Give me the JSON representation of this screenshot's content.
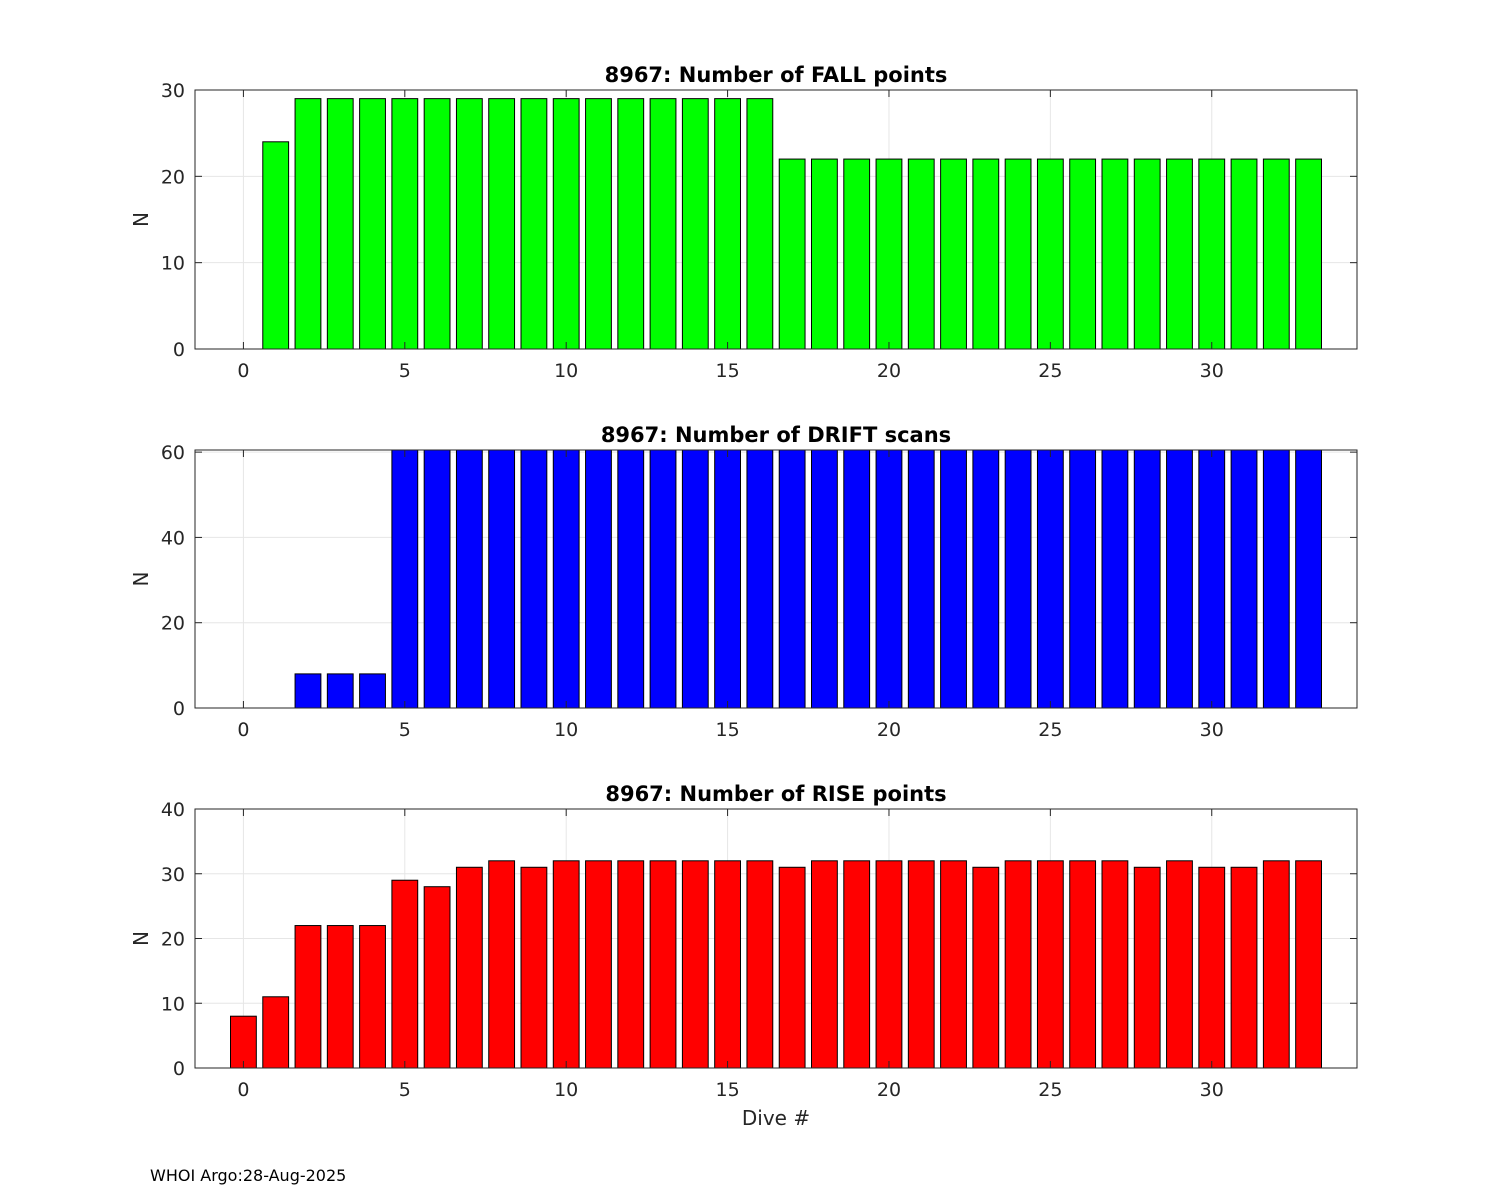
{
  "footer": "WHOI Argo:28-Aug-2025",
  "chart_data": [
    {
      "type": "bar",
      "title": "8967: Number of FALL points",
      "xlabel": "",
      "ylabel": "N",
      "xlim": [
        -1.5,
        34.5
      ],
      "ylim": [
        0,
        30
      ],
      "xticks": [
        0,
        5,
        10,
        15,
        20,
        25,
        30
      ],
      "yticks": [
        0,
        10,
        20,
        30
      ],
      "grid": true,
      "color": "#00ff00",
      "x": [
        1,
        2,
        3,
        4,
        5,
        6,
        7,
        8,
        9,
        10,
        11,
        12,
        13,
        14,
        15,
        16,
        17,
        18,
        19,
        20,
        21,
        22,
        23,
        24,
        25,
        26,
        27,
        28,
        29,
        30,
        31,
        32,
        33
      ],
      "values": [
        24,
        29,
        29,
        29,
        29,
        29,
        29,
        29,
        29,
        29,
        29,
        29,
        29,
        29,
        29,
        29,
        22,
        22,
        22,
        22,
        22,
        22,
        22,
        22,
        22,
        22,
        22,
        22,
        22,
        22,
        22,
        22,
        22
      ]
    },
    {
      "type": "bar",
      "title": "8967: Number of DRIFT scans",
      "xlabel": "",
      "ylabel": "N",
      "xlim": [
        -1.5,
        34.5
      ],
      "ylim": [
        0,
        60.5
      ],
      "xticks": [
        0,
        5,
        10,
        15,
        20,
        25,
        30
      ],
      "yticks": [
        0,
        20,
        40,
        60
      ],
      "grid": true,
      "color": "#0000ff",
      "x": [
        -1,
        0,
        1,
        2,
        3,
        4,
        5,
        6,
        7,
        8,
        9,
        10,
        11,
        12,
        13,
        14,
        15,
        16,
        17,
        18,
        19,
        20,
        21,
        22,
        23,
        24,
        25,
        26,
        27,
        28,
        29,
        30,
        31,
        32,
        33
      ],
      "values": [
        0,
        0,
        0,
        8,
        8,
        8,
        61,
        61,
        61,
        61,
        61,
        61,
        61,
        61,
        61,
        61,
        61,
        61,
        61,
        61,
        61,
        61,
        61,
        61,
        61,
        61,
        61,
        61,
        61,
        61,
        61,
        61,
        61,
        61,
        61
      ]
    },
    {
      "type": "bar",
      "title": "8967: Number of RISE points",
      "xlabel": "Dive #",
      "ylabel": "N",
      "xlim": [
        -1.5,
        34.5
      ],
      "ylim": [
        0,
        40
      ],
      "xticks": [
        0,
        5,
        10,
        15,
        20,
        25,
        30
      ],
      "yticks": [
        0,
        10,
        20,
        30,
        40
      ],
      "grid": true,
      "color": "#ff0000",
      "x": [
        0,
        1,
        2,
        3,
        4,
        5,
        6,
        7,
        8,
        9,
        10,
        11,
        12,
        13,
        14,
        15,
        16,
        17,
        18,
        19,
        20,
        21,
        22,
        23,
        24,
        25,
        26,
        27,
        28,
        29,
        30,
        31,
        32,
        33
      ],
      "values": [
        8,
        11,
        22,
        22,
        22,
        29,
        28,
        31,
        32,
        31,
        32,
        32,
        32,
        32,
        32,
        32,
        32,
        31,
        32,
        32,
        32,
        32,
        32,
        31,
        32,
        32,
        32,
        32,
        31,
        32,
        31,
        31,
        32,
        32
      ]
    }
  ]
}
